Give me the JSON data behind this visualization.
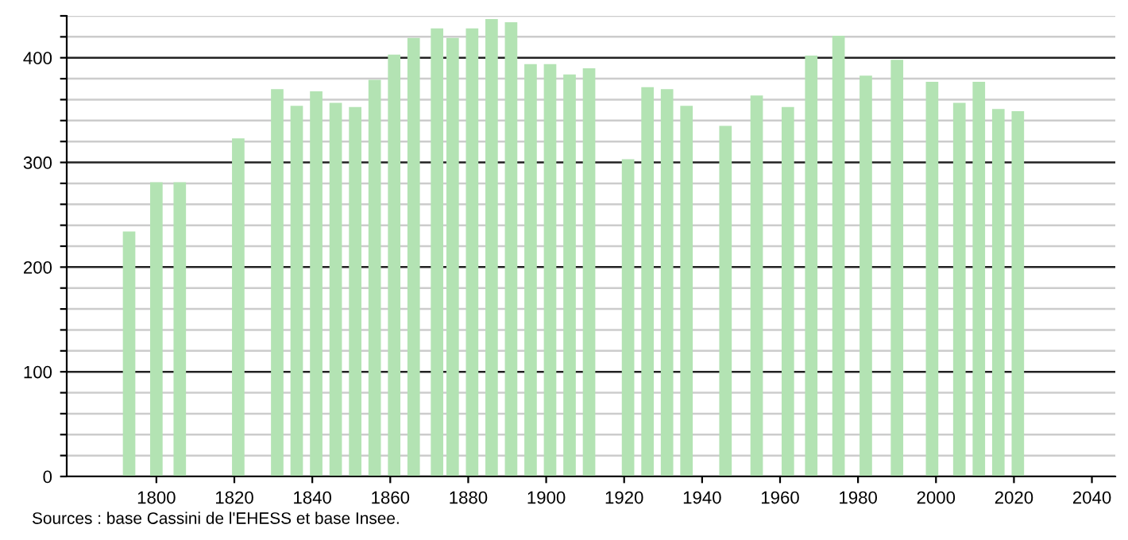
{
  "chart_data": {
    "type": "bar",
    "color": "#b3e3b3",
    "x": [
      1793,
      1800,
      1806,
      1821,
      1831,
      1836,
      1841,
      1846,
      1851,
      1856,
      1861,
      1866,
      1872,
      1876,
      1881,
      1886,
      1891,
      1896,
      1901,
      1906,
      1911,
      1921,
      1926,
      1931,
      1936,
      1946,
      1954,
      1962,
      1968,
      1975,
      1982,
      1990,
      1999,
      2006,
      2011,
      2016,
      2021
    ],
    "values": [
      234,
      281,
      281,
      323,
      370,
      354,
      368,
      357,
      353,
      379,
      403,
      419,
      428,
      419,
      428,
      437,
      434,
      394,
      394,
      384,
      390,
      303,
      372,
      370,
      354,
      335,
      364,
      353,
      402,
      421,
      383,
      398,
      377,
      357,
      377,
      351,
      349
    ],
    "xlim": [
      1777,
      2046
    ],
    "xticks": [
      1800,
      1820,
      1840,
      1860,
      1880,
      1900,
      1920,
      1940,
      1960,
      1980,
      2000,
      2020,
      2040
    ],
    "ylim": [
      0,
      440
    ],
    "yticks": [
      0,
      {
        "value": 20,
        "label": null
      },
      {
        "value": 40,
        "label": null
      },
      {
        "value": 60,
        "label": null
      },
      {
        "value": 80,
        "label": null
      },
      100,
      {
        "value": 120,
        "label": null
      },
      {
        "value": 140,
        "label": null
      },
      {
        "value": 160,
        "label": null
      },
      {
        "value": 180,
        "label": null
      },
      200,
      {
        "value": 220,
        "label": null
      },
      {
        "value": 240,
        "label": null
      },
      {
        "value": 260,
        "label": null
      },
      {
        "value": 280,
        "label": null
      },
      300,
      {
        "value": 320,
        "label": null
      },
      {
        "value": 340,
        "label": null
      },
      {
        "value": 360,
        "label": null
      },
      {
        "value": 380,
        "label": null
      },
      400,
      {
        "value": 420,
        "label": null
      },
      {
        "value": 440,
        "label": null
      }
    ],
    "grid": "y",
    "annotations": [
      "Sources : base Cassini de l'EHESS et base Insee."
    ]
  }
}
